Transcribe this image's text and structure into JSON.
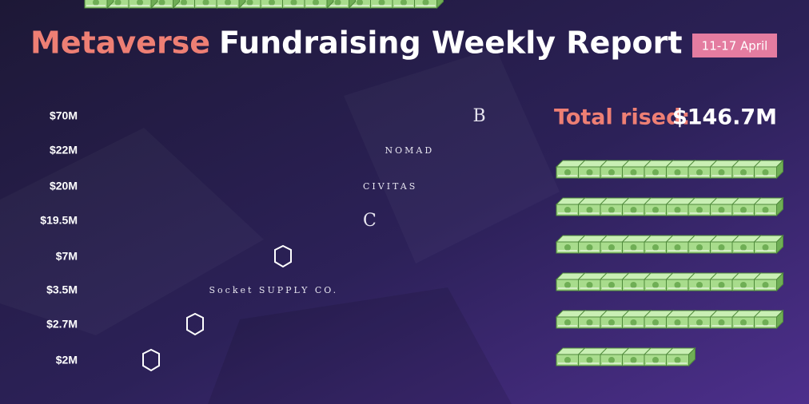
{
  "chart_data": {
    "type": "pictograph",
    "title_highlight": "Metaverse",
    "title": "Fundraising Weekly Report",
    "date_range": "11-17 April",
    "categories": [
      "B",
      "NOMAD",
      "CIVITAS",
      "C",
      null,
      "Socket SUPPLY CO.",
      null,
      null
    ],
    "values": [
      70,
      22,
      20,
      19.5,
      7,
      3.5,
      2.7,
      2
    ],
    "value_labels": [
      "$70M",
      "$22M",
      "$20M",
      "$19.5M",
      "$7M",
      "$3.5M",
      "$2.7M",
      "$2M"
    ],
    "total": {
      "label": "Total rised:",
      "value": 146.7,
      "value_label": "$146.7M"
    },
    "colors": {
      "highlight": "#ee7f74",
      "stack": "#a8dc8c",
      "stack_edge": "#4f8a3b",
      "date_box": "#e47ca0"
    }
  }
}
